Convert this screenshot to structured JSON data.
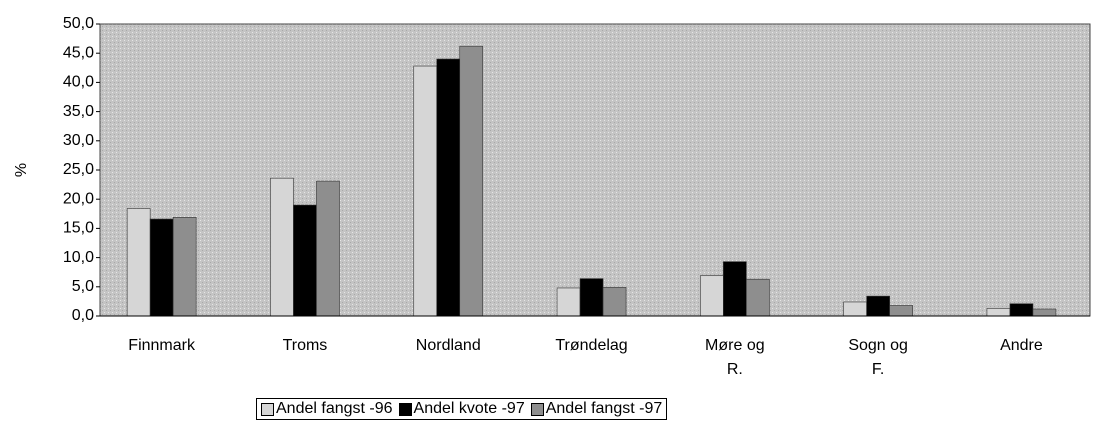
{
  "chart_data": {
    "type": "bar",
    "y_label": "%",
    "categories": [
      "Finnmark",
      "Troms",
      "Nordland",
      "Trøndelag",
      "Møre og\nR.",
      "Sogn og\nF.",
      "Andre"
    ],
    "series": [
      {
        "name": "Andel fangst -96",
        "color": "#d6d6d6",
        "values": [
          18.4,
          23.6,
          42.8,
          4.8,
          6.9,
          2.4,
          1.3
        ]
      },
      {
        "name": "Andel kvote -97",
        "color": "#000000",
        "values": [
          16.6,
          19.0,
          44.0,
          6.4,
          9.3,
          3.4,
          2.1
        ]
      },
      {
        "name": "Andel fangst -97",
        "color": "#8e8e8e",
        "values": [
          16.9,
          23.1,
          46.2,
          4.9,
          6.3,
          1.8,
          1.2
        ]
      }
    ],
    "ylim": [
      0,
      50
    ],
    "yticks": [
      {
        "value": 0,
        "label": "0,0"
      },
      {
        "value": 5,
        "label": "5,0"
      },
      {
        "value": 10,
        "label": "10,0"
      },
      {
        "value": 15,
        "label": "15,0"
      },
      {
        "value": 20,
        "label": "20,0"
      },
      {
        "value": 25,
        "label": "25,0"
      },
      {
        "value": 30,
        "label": "30,0"
      },
      {
        "value": 35,
        "label": "35,0"
      },
      {
        "value": 40,
        "label": "40,0"
      },
      {
        "value": 45,
        "label": "45,0"
      },
      {
        "value": 50,
        "label": "50,0"
      }
    ],
    "grid": false,
    "legend": "bottom"
  }
}
